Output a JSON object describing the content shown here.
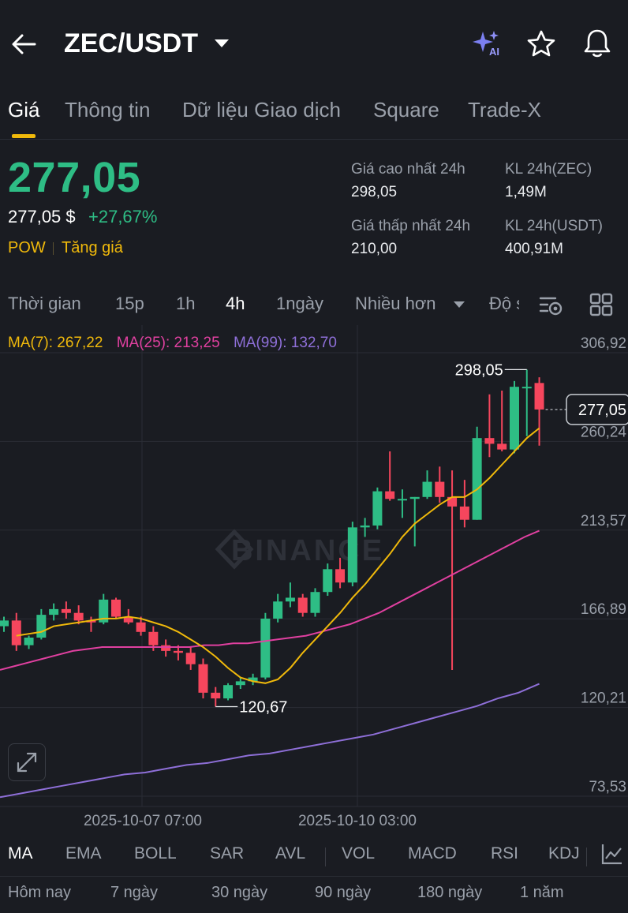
{
  "header": {
    "pair": "ZEC/USDT",
    "icons": [
      "back-arrow-icon",
      "ai-sparkle-icon",
      "star-icon",
      "bell-icon"
    ]
  },
  "tabs": [
    "Giá",
    "Thông tin",
    "Dữ liệu Giao dịch",
    "Square",
    "Trade-X"
  ],
  "price": {
    "last": "277,05",
    "usd": "277,05 $",
    "change": "+27,67%",
    "tags": [
      "POW",
      "Tăng giá"
    ],
    "stats": [
      {
        "label": "Giá cao nhất 24h",
        "value": "298,05"
      },
      {
        "label": "KL 24h(ZEC)",
        "value": "1,49M"
      },
      {
        "label": "Giá thấp nhất 24h",
        "value": "210,00"
      },
      {
        "label": "KL 24h(USDT)",
        "value": "400,91M"
      }
    ]
  },
  "timeframes": [
    "Thời gian",
    "15p",
    "1h",
    "4h",
    "1ngày",
    "Nhiều hơn",
    "Độ s"
  ],
  "ma_legend": {
    "ma7": "MA(7): 267,22",
    "ma25": "MA(25): 213,25",
    "ma99": "MA(99): 132,70"
  },
  "colors": {
    "up": "#2ebd85",
    "down": "#f6465d",
    "accent": "#f0b90b",
    "ma7": "#f0b90b",
    "ma25": "#e040a0",
    "ma99": "#8e6fd8"
  },
  "chart_data": {
    "type": "candlestick",
    "y_ticks": [
      "306,92",
      "260,24",
      "213,57",
      "166,89",
      "120,21",
      "73,53"
    ],
    "ylim": [
      73.53,
      306.92
    ],
    "x_labels": [
      "2025-10-07 07:00",
      "2025-10-10 03:00"
    ],
    "watermark": "BINANCE",
    "annotations": {
      "high": "298,05",
      "low": "120,67",
      "last": "277,05"
    },
    "candles": [
      {
        "o": 163,
        "h": 168,
        "l": 160,
        "c": 166
      },
      {
        "o": 166,
        "h": 170,
        "l": 150,
        "c": 153
      },
      {
        "o": 153,
        "h": 158,
        "l": 151,
        "c": 157
      },
      {
        "o": 157,
        "h": 172,
        "l": 156,
        "c": 169
      },
      {
        "o": 169,
        "h": 175,
        "l": 166,
        "c": 172
      },
      {
        "o": 172,
        "h": 176,
        "l": 167,
        "c": 170
      },
      {
        "o": 170,
        "h": 174,
        "l": 164,
        "c": 166
      },
      {
        "o": 166,
        "h": 168,
        "l": 160,
        "c": 165
      },
      {
        "o": 165,
        "h": 180,
        "l": 164,
        "c": 177
      },
      {
        "o": 177,
        "h": 178,
        "l": 167,
        "c": 168
      },
      {
        "o": 168,
        "h": 172,
        "l": 164,
        "c": 165
      },
      {
        "o": 165,
        "h": 168,
        "l": 158,
        "c": 160
      },
      {
        "o": 160,
        "h": 163,
        "l": 150,
        "c": 153
      },
      {
        "o": 153,
        "h": 156,
        "l": 147,
        "c": 150
      },
      {
        "o": 150,
        "h": 153,
        "l": 145,
        "c": 149
      },
      {
        "o": 149,
        "h": 152,
        "l": 140,
        "c": 143
      },
      {
        "o": 143,
        "h": 146,
        "l": 125,
        "c": 128
      },
      {
        "o": 128,
        "h": 131,
        "l": 120.67,
        "c": 125
      },
      {
        "o": 125,
        "h": 133,
        "l": 124,
        "c": 132
      },
      {
        "o": 132,
        "h": 136,
        "l": 130,
        "c": 134
      },
      {
        "o": 134,
        "h": 138,
        "l": 132,
        "c": 136
      },
      {
        "o": 136,
        "h": 170,
        "l": 135,
        "c": 167
      },
      {
        "o": 167,
        "h": 180,
        "l": 165,
        "c": 176
      },
      {
        "o": 176,
        "h": 186,
        "l": 173,
        "c": 178
      },
      {
        "o": 178,
        "h": 180,
        "l": 168,
        "c": 170
      },
      {
        "o": 170,
        "h": 183,
        "l": 168,
        "c": 181
      },
      {
        "o": 181,
        "h": 196,
        "l": 179,
        "c": 193
      },
      {
        "o": 193,
        "h": 199,
        "l": 183,
        "c": 186
      },
      {
        "o": 186,
        "h": 218,
        "l": 184,
        "c": 215
      },
      {
        "o": 215,
        "h": 220,
        "l": 210,
        "c": 216
      },
      {
        "o": 216,
        "h": 236,
        "l": 214,
        "c": 234
      },
      {
        "o": 234,
        "h": 255,
        "l": 229,
        "c": 230
      },
      {
        "o": 230,
        "h": 235,
        "l": 220,
        "c": 230
      },
      {
        "o": 230,
        "h": 231,
        "l": 205,
        "c": 231
      },
      {
        "o": 231,
        "h": 245,
        "l": 230,
        "c": 239
      },
      {
        "o": 239,
        "h": 247,
        "l": 228,
        "c": 231
      },
      {
        "o": 231,
        "h": 245,
        "l": 140,
        "c": 226
      },
      {
        "o": 226,
        "h": 240,
        "l": 215,
        "c": 219
      },
      {
        "o": 219,
        "h": 268,
        "l": 219,
        "c": 262
      },
      {
        "o": 262,
        "h": 285,
        "l": 252,
        "c": 259
      },
      {
        "o": 259,
        "h": 287,
        "l": 255,
        "c": 256
      },
      {
        "o": 256,
        "h": 292,
        "l": 254,
        "c": 289
      },
      {
        "o": 289,
        "h": 298.05,
        "l": 263,
        "c": 289
      },
      {
        "o": 291,
        "h": 294,
        "l": 258,
        "c": 277.05
      }
    ],
    "ma7": [
      158,
      159,
      160,
      163,
      164,
      165,
      166,
      167,
      167,
      168,
      167,
      165,
      163,
      160,
      156,
      152,
      147,
      141,
      136,
      134,
      133,
      135,
      141,
      149,
      156,
      163,
      170,
      178,
      185,
      193,
      201,
      210,
      217,
      222,
      227,
      231,
      231,
      235,
      241,
      248,
      255,
      262,
      267.22
    ],
    "ma25": [
      140,
      142,
      144,
      146,
      148,
      150,
      151,
      152,
      152,
      152,
      152,
      152,
      152,
      152,
      153,
      153,
      154,
      154,
      155,
      156,
      157,
      158,
      160,
      162,
      164,
      167,
      170,
      174,
      178,
      182,
      186,
      190,
      194,
      198,
      202,
      206,
      210,
      213.25
    ],
    "ma99": [
      73,
      75,
      77,
      79,
      81,
      83,
      85,
      86,
      88,
      90,
      91,
      93,
      95,
      96,
      98,
      100,
      102,
      104,
      106,
      109,
      112,
      115,
      118,
      121,
      125,
      128,
      132.7
    ]
  },
  "indicators": [
    "MA",
    "EMA",
    "BOLL",
    "SAR",
    "AVL",
    "VOL",
    "MACD",
    "RSI",
    "KDJ"
  ],
  "periods": [
    "Hôm nay",
    "7 ngày",
    "30 ngày",
    "90 ngày",
    "180 ngày",
    "1 năm"
  ]
}
